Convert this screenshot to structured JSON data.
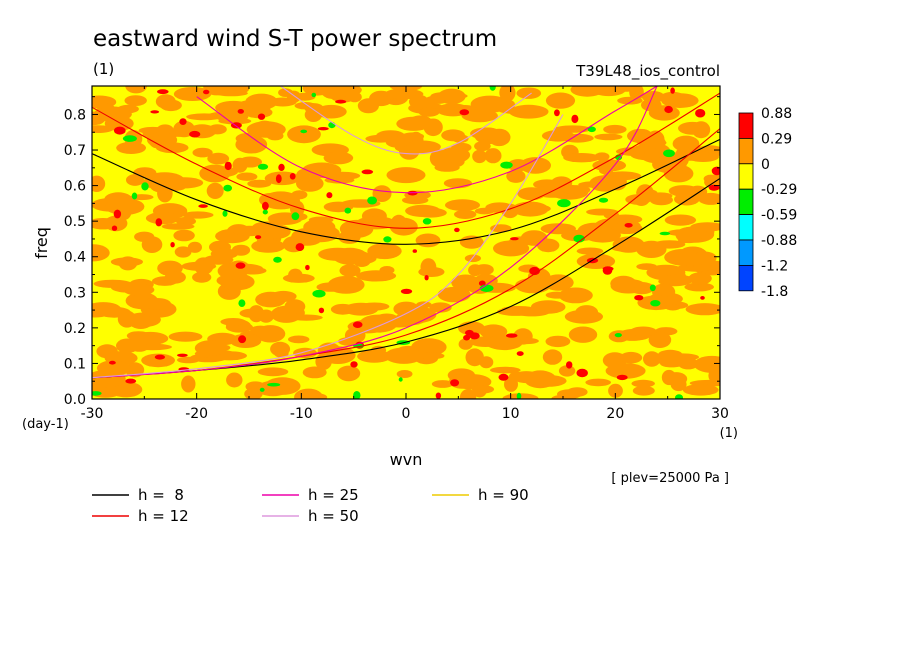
{
  "chart_data": {
    "type": "heatmap",
    "title": "eastward wind S-T power spectrum",
    "units": "(1)",
    "experiment": "T39L48_ios_control",
    "xlabel": "wvn",
    "ylabel": "freq",
    "x_units": "(1)",
    "y_units": "(day-1)",
    "xlim": [
      -30,
      30
    ],
    "ylim": [
      0,
      0.88
    ],
    "xticks": [
      "-30",
      "-20",
      "-10",
      "0",
      "10",
      "20",
      "30"
    ],
    "xtick_values": [
      -30,
      -20,
      -10,
      0,
      10,
      20,
      30
    ],
    "yticks": [
      "0.0",
      "0.1",
      "0.2",
      "0.3",
      "0.4",
      "0.5",
      "0.6",
      "0.7",
      "0.8"
    ],
    "ytick_values": [
      0,
      0.1,
      0.2,
      0.3,
      0.4,
      0.5,
      0.6,
      0.7,
      0.8
    ],
    "colorbar": {
      "labels": [
        "0.88",
        "0.29",
        "0",
        "-0.29",
        "-0.59",
        "-0.88",
        "-1.2",
        "-1.8"
      ],
      "colors": [
        "#ff0000",
        "#ff9900",
        "#ffff00",
        "#00ee00",
        "#00ffff",
        "#0099ff",
        "#0044ff"
      ]
    },
    "field_note": "noisy field mostly between -0.29 and 0.29, sparse red and green patches",
    "legend": [
      {
        "label": "h =  8",
        "color": "#000000",
        "h": 8
      },
      {
        "label": "h = 12",
        "color": "#ee0000",
        "h": 12
      },
      {
        "label": "h = 25",
        "color": "#ee00aa",
        "h": 25
      },
      {
        "label": "h = 50",
        "color": "#dd99dd",
        "h": 50
      },
      {
        "label": "h = 90",
        "color": "#eecc00",
        "h": 90
      }
    ],
    "curves": [
      {
        "h": 8,
        "family": "upper",
        "x": [
          -30,
          -20,
          -10,
          0,
          10,
          20,
          30
        ],
        "y": [
          0.69,
          0.56,
          0.47,
          0.435,
          0.475,
          0.59,
          0.73
        ]
      },
      {
        "h": 8,
        "family": "lower",
        "x": [
          -30,
          -20,
          -10,
          0,
          10,
          20,
          30
        ],
        "y": [
          0.06,
          0.08,
          0.11,
          0.16,
          0.26,
          0.43,
          0.62
        ]
      },
      {
        "h": 12,
        "family": "upper",
        "x": [
          -30,
          -20,
          -10,
          0,
          10,
          20,
          30
        ],
        "y": [
          0.82,
          0.66,
          0.535,
          0.48,
          0.535,
          0.68,
          0.86
        ]
      },
      {
        "h": 12,
        "family": "lower",
        "x": [
          -30,
          -20,
          -10,
          0,
          10,
          20,
          30
        ],
        "y": [
          0.06,
          0.08,
          0.12,
          0.18,
          0.31,
          0.52,
          0.76
        ]
      },
      {
        "h": 25,
        "family": "upper",
        "x": [
          -20,
          -10,
          0,
          10,
          20,
          24
        ],
        "y": [
          0.85,
          0.65,
          0.58,
          0.64,
          0.81,
          0.88
        ]
      },
      {
        "h": 25,
        "family": "lower",
        "x": [
          -30,
          -20,
          -10,
          0,
          10,
          20,
          24
        ],
        "y": [
          0.06,
          0.08,
          0.12,
          0.2,
          0.37,
          0.66,
          0.88
        ]
      },
      {
        "h": 50,
        "family": "upper",
        "x": [
          -12,
          -5,
          0,
          5,
          12
        ],
        "y": [
          0.88,
          0.74,
          0.69,
          0.72,
          0.86
        ]
      },
      {
        "h": 50,
        "family": "lower",
        "x": [
          -30,
          -20,
          -10,
          0,
          5,
          10,
          15
        ],
        "y": [
          0.06,
          0.085,
          0.13,
          0.24,
          0.35,
          0.55,
          0.8
        ]
      }
    ],
    "annotations": [
      "[ plev=25000 Pa ]"
    ]
  }
}
